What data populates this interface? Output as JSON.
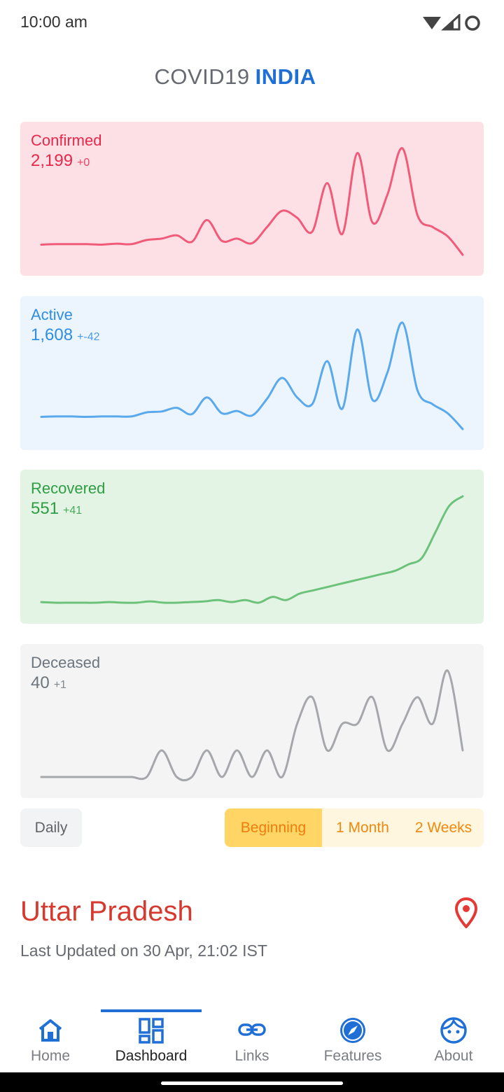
{
  "status_bar": {
    "time": "10:00 am"
  },
  "app_title": {
    "main": "COVID19",
    "accent": "INDIA"
  },
  "colors": {
    "confirmed": "#e8284a",
    "active": "#2f8de4",
    "recovered": "#2f9d44",
    "deceased": "#6c757d",
    "accent": "#1f6fd6"
  },
  "cards": [
    {
      "label": "Confirmed",
      "value": "2,199",
      "delta": "+0"
    },
    {
      "label": "Active",
      "value": "1,608",
      "delta": "+-42"
    },
    {
      "label": "Recovered",
      "value": "551",
      "delta": "+41"
    },
    {
      "label": "Deceased",
      "value": "40",
      "delta": "+1"
    }
  ],
  "chart_data": [
    {
      "type": "line",
      "series": [
        {
          "values": [
            2,
            3,
            3,
            3,
            2,
            4,
            3,
            12,
            15,
            22,
            8,
            55,
            10,
            15,
            5,
            40,
            75,
            60,
            30,
            135,
            25,
            200,
            50,
            110,
            210,
            65,
            40,
            20,
            -20
          ]
        }
      ]
    },
    {
      "type": "line",
      "series": [
        {
          "values": [
            2,
            3,
            3,
            2,
            3,
            3,
            3,
            12,
            14,
            22,
            8,
            45,
            10,
            15,
            5,
            42,
            88,
            45,
            30,
            125,
            20,
            195,
            40,
            100,
            210,
            60,
            30,
            10,
            -25
          ]
        }
      ]
    },
    {
      "type": "line",
      "series": [
        {
          "values": [
            2,
            1,
            1,
            1,
            1,
            2,
            1,
            1,
            3,
            1,
            1,
            2,
            3,
            5,
            2,
            5,
            1,
            10,
            5,
            15,
            20,
            25,
            30,
            35,
            40,
            45,
            50,
            60,
            70,
            110,
            150,
            165
          ]
        }
      ]
    },
    {
      "type": "line",
      "series": [
        {
          "values": [
            0,
            0,
            0,
            0,
            0,
            0,
            0,
            0,
            1,
            0,
            0,
            1,
            0,
            1,
            0,
            1,
            0,
            2,
            3,
            1,
            2,
            2,
            3,
            1,
            2,
            3,
            2,
            4,
            1
          ]
        }
      ]
    }
  ],
  "controls": {
    "daily_label": "Daily",
    "ranges": [
      "Beginning",
      "1 Month",
      "2 Weeks"
    ],
    "selected_range": "Beginning"
  },
  "region": {
    "name": "Uttar Pradesh",
    "last_updated": "Last Updated on 30 Apr, 21:02 IST"
  },
  "nav": {
    "items": [
      {
        "label": "Home",
        "icon": "home-icon"
      },
      {
        "label": "Dashboard",
        "icon": "dashboard-icon"
      },
      {
        "label": "Links",
        "icon": "link-icon"
      },
      {
        "label": "Features",
        "icon": "compass-icon"
      },
      {
        "label": "About",
        "icon": "face-icon"
      }
    ],
    "active": "Dashboard"
  }
}
